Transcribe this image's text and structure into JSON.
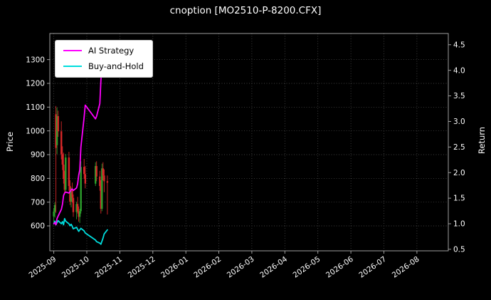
{
  "title": "cnoption [MO2510-P-8200.CFX]",
  "colors": {
    "background": "#000000",
    "text": "#ffffff",
    "grid": "#555555",
    "frame": "#b0b0b0",
    "ai_strategy": "#ff00ff",
    "buy_and_hold": "#00dddd",
    "candle_up": "#2ca02c",
    "candle_down": "#d62728",
    "legend_bg": "#ffffff"
  },
  "chart_data": {
    "type": "candlestick+line",
    "title": "cnoption [MO2510-P-8200.CFX]",
    "ylabel_left": "Price",
    "ylabel_right": "Return",
    "grid": true,
    "legend_position": "upper-left",
    "x_tick_labels": [
      "2025-09",
      "2025-10",
      "2025-11",
      "2025-12",
      "2026-01",
      "2026-02",
      "2026-03",
      "2026-04",
      "2026-05",
      "2026-06",
      "2026-07",
      "2026-08"
    ],
    "x_months_span": [
      -0.12,
      11.95
    ],
    "ylim_left": [
      495,
      1410
    ],
    "yticks_left": [
      600,
      700,
      800,
      900,
      1000,
      1100,
      1200,
      1300
    ],
    "ylim_right": [
      0.47,
      4.72
    ],
    "yticks_right": [
      "0.5",
      "1.0",
      "1.5",
      "2.0",
      "2.5",
      "3.0",
      "3.5",
      "4.0",
      "4.5"
    ],
    "legend": [
      {
        "label": "AI Strategy",
        "color": "#ff00ff"
      },
      {
        "label": "Buy-and-Hold",
        "color": "#00dddd"
      }
    ],
    "candles": {
      "up_color": "#2ca02c",
      "down_color": "#d62728",
      "dates": [
        "2025-09-01",
        "2025-09-02",
        "2025-09-03",
        "2025-09-04",
        "2025-09-05",
        "2025-09-08",
        "2025-09-09",
        "2025-09-10",
        "2025-09-11",
        "2025-09-12",
        "2025-09-15",
        "2025-09-16",
        "2025-09-17",
        "2025-09-18",
        "2025-09-19",
        "2025-09-22",
        "2025-09-23",
        "2025-09-24",
        "2025-09-25",
        "2025-09-26",
        "2025-09-29",
        "2025-09-30",
        "2025-10-09",
        "2025-10-10",
        "2025-10-13",
        "2025-10-14",
        "2025-10-15",
        "2025-10-16",
        "2025-10-17",
        "2025-10-20"
      ],
      "open": [
        640,
        660,
        1070,
        940,
        1062,
        998,
        902,
        858,
        798,
        752,
        888,
        768,
        702,
        748,
        718,
        658,
        692,
        662,
        638,
        662,
        848,
        818,
        778,
        852,
        808,
        768,
        672,
        842,
        812,
        788
      ],
      "high": [
        675,
        700,
        1105,
        1098,
        1085,
        1040,
        935,
        908,
        832,
        902,
        912,
        792,
        762,
        782,
        732,
        702,
        722,
        682,
        672,
        872,
        882,
        852,
        868,
        872,
        832,
        792,
        862,
        868,
        838,
        812
      ],
      "low": [
        612,
        635,
        655,
        902,
        975,
        880,
        835,
        778,
        732,
        742,
        748,
        688,
        678,
        698,
        638,
        628,
        652,
        618,
        612,
        652,
        798,
        758,
        768,
        788,
        748,
        652,
        662,
        792,
        742,
        648
      ],
      "close": [
        660,
        688,
        928,
        1062,
        998,
        902,
        858,
        798,
        752,
        888,
        768,
        702,
        748,
        718,
        658,
        692,
        662,
        638,
        662,
        848,
        818,
        778,
        852,
        808,
        768,
        672,
        842,
        812,
        788,
        782
      ]
    },
    "series": [
      {
        "name": "Buy-and-Hold",
        "color": "#00dddd",
        "axis": "right",
        "dates": [
          "2025-09-01",
          "2025-09-02",
          "2025-09-03",
          "2025-09-04",
          "2025-09-05",
          "2025-09-08",
          "2025-09-09",
          "2025-09-10",
          "2025-09-11",
          "2025-09-12",
          "2025-09-15",
          "2025-09-16",
          "2025-09-17",
          "2025-09-18",
          "2025-09-19",
          "2025-09-22",
          "2025-09-23",
          "2025-09-24",
          "2025-09-25",
          "2025-09-26",
          "2025-09-29",
          "2025-09-30",
          "2025-10-09",
          "2025-10-10",
          "2025-10-13",
          "2025-10-14",
          "2025-10-15",
          "2025-10-16",
          "2025-10-17",
          "2025-10-20"
        ],
        "values": [
          1.0,
          1.05,
          0.98,
          1.02,
          1.06,
          1.0,
          1.04,
          0.98,
          1.1,
          1.05,
          1.0,
          0.96,
          0.99,
          0.95,
          0.9,
          0.93,
          0.89,
          0.85,
          0.88,
          0.91,
          0.86,
          0.82,
          0.68,
          0.65,
          0.62,
          0.6,
          0.66,
          0.72,
          0.8,
          0.88
        ]
      },
      {
        "name": "AI Strategy",
        "color": "#ff00ff",
        "axis": "right",
        "dates": [
          "2025-09-01",
          "2025-09-02",
          "2025-09-03",
          "2025-09-04",
          "2025-09-05",
          "2025-09-08",
          "2025-09-09",
          "2025-09-10",
          "2025-09-11",
          "2025-09-12",
          "2025-09-15",
          "2025-09-16",
          "2025-09-17",
          "2025-09-18",
          "2025-09-19",
          "2025-09-22",
          "2025-09-23",
          "2025-09-24",
          "2025-09-25",
          "2025-09-26",
          "2025-09-29",
          "2025-09-30",
          "2025-10-09",
          "2025-10-10",
          "2025-10-13",
          "2025-10-14",
          "2025-10-15",
          "2025-10-16",
          "2025-10-17",
          "2025-10-20"
        ],
        "values": [
          1.0,
          1.02,
          0.98,
          1.1,
          1.15,
          1.28,
          1.38,
          1.55,
          1.6,
          1.62,
          1.6,
          1.63,
          1.66,
          1.68,
          1.65,
          1.7,
          1.78,
          1.95,
          2.05,
          2.5,
          3.08,
          3.32,
          3.05,
          3.1,
          3.35,
          3.8,
          4.15,
          4.35,
          4.4,
          4.3
        ]
      }
    ]
  }
}
